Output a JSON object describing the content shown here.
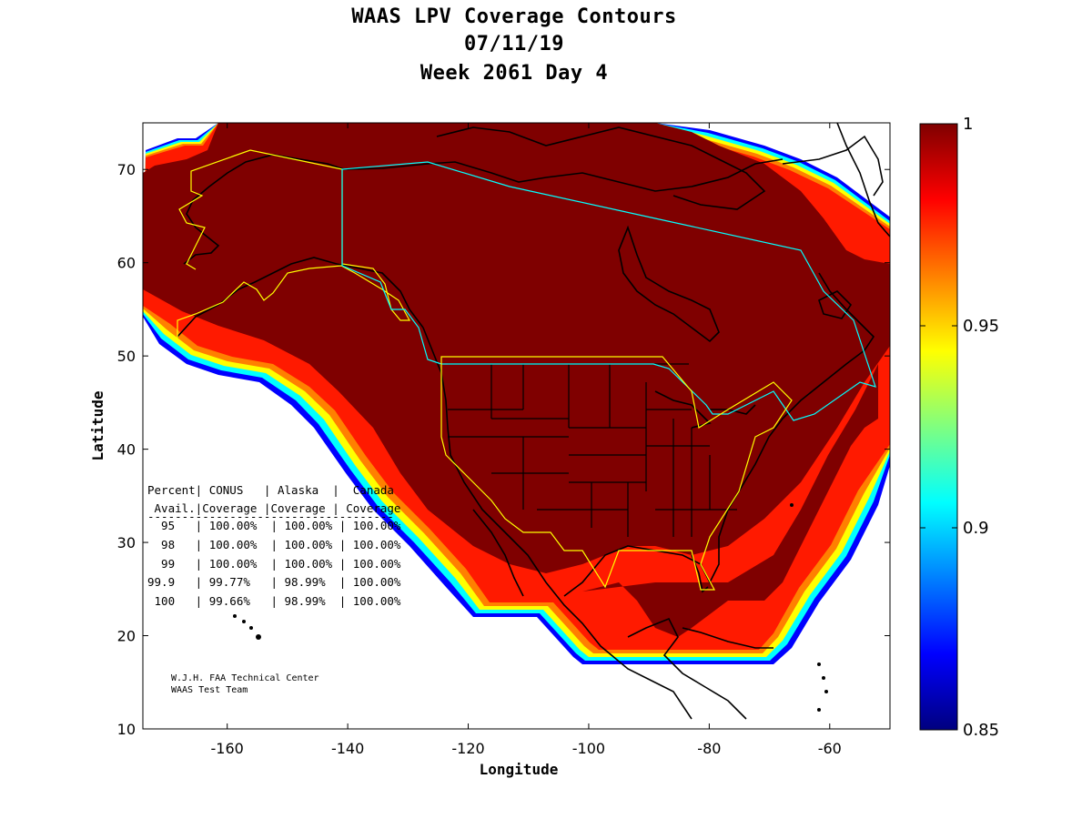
{
  "title": {
    "line1": "WAAS LPV Coverage Contours",
    "line2": "07/11/19",
    "line3": "Week 2061 Day 4"
  },
  "map": {
    "xlabel": "Longitude",
    "ylabel": "Latitude",
    "xlim": [
      -174,
      -50
    ],
    "ylim": [
      10,
      75
    ],
    "xticks": [
      -160,
      -140,
      -120,
      -100,
      -80,
      -60
    ],
    "yticks": [
      10,
      20,
      30,
      40,
      50,
      60,
      70
    ],
    "xtick_labels": [
      "-160",
      "-140",
      "-120",
      "-100",
      "-80",
      "-60"
    ],
    "ytick_labels": [
      "10",
      "20",
      "30",
      "40",
      "50",
      "60",
      "70"
    ]
  },
  "colorbar": {
    "range": [
      0.85,
      1
    ],
    "ticks": [
      "1",
      "0.95",
      "0.9",
      "0.85"
    ],
    "tick_values": [
      1,
      0.95,
      0.9,
      0.85
    ],
    "colormap": "jet",
    "colors": [
      "#00007f",
      "#0000ff",
      "#00ffff",
      "#ffff00",
      "#ff0000",
      "#7f0000"
    ]
  },
  "stats_table": {
    "header1": "Percent| CONUS   | Alaska  |  Canada",
    "header2": " Avail.|Coverage |Coverage | Coverage",
    "rule": "------------------------------------",
    "rows": [
      "  95   | 100.00%  | 100.00% | 100.00%",
      "  98   | 100.00%  | 100.00% | 100.00%",
      "  99   | 100.00%  | 100.00% | 100.00%",
      "99.9   | 99.77%   | 98.99%  | 100.00%",
      " 100   | 99.66%   | 98.99%  | 100.00%"
    ]
  },
  "credit": {
    "line1": "W.J.H. FAA Technical Center",
    "line2": "WAAS Test Team"
  },
  "service_area_colors": {
    "alaska_conus": "#ffff00",
    "canada": "#00ffff",
    "coverage_max": "#7f0000"
  }
}
